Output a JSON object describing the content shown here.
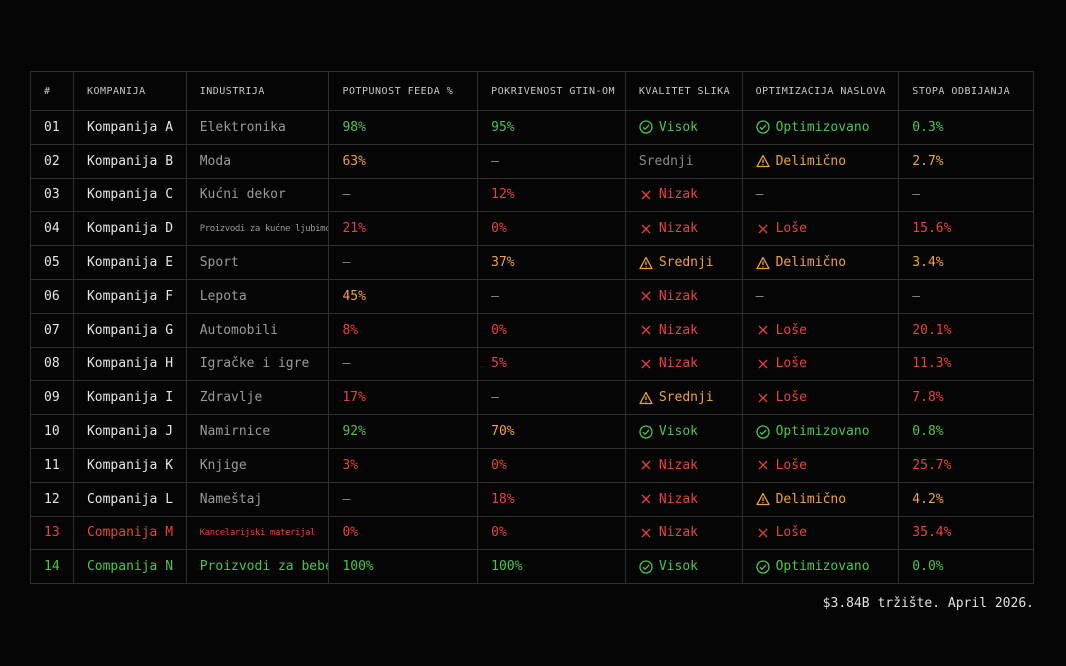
{
  "table": {
    "header": [
      "#",
      "KOMPANIJA",
      "INDUSTRIJA",
      "POTPUNOST FEEDA %",
      "POKRIVENOST GTIN-OM",
      "KVALITET SLIKA",
      "OPTIMIZACIJA NASLOVA",
      "STOPA ODBIJANJA"
    ],
    "rows": [
      [
        "01",
        "Kompanija A",
        "Elektronika",
        "98%",
        "95%",
        "Visok",
        "Optimizovano",
        "0.3%"
      ],
      [
        "02",
        "Kompanija B",
        "Moda",
        "63%",
        "–",
        "Srednji",
        "Delimično",
        "2.7%"
      ],
      [
        "03",
        "Kompanija C",
        "Kućni dekor",
        "–",
        "12%",
        "Nizak",
        "–",
        "–"
      ],
      [
        "04",
        "Kompanija D",
        "Proizvodi za kućne ljubimce",
        "21%",
        "0%",
        "Nizak",
        "Loše",
        "15.6%"
      ],
      [
        "05",
        "Kompanija E",
        "Sport",
        "–",
        "37%",
        "Srednji",
        "Delimično",
        "3.4%"
      ],
      [
        "06",
        "Kompanija F",
        "Lepota",
        "45%",
        "–",
        "Nizak",
        "–",
        "–"
      ],
      [
        "07",
        "Kompanija G",
        "Automobili",
        "8%",
        "0%",
        "Nizak",
        "Loše",
        "20.1%"
      ],
      [
        "08",
        "Kompanija H",
        "Igračke i igre",
        "–",
        "5%",
        "Nizak",
        "Loše",
        "11.3%"
      ],
      [
        "09",
        "Kompanija I",
        "Zdravlje",
        "17%",
        "–",
        "Srednji",
        "Loše",
        "7.8%"
      ],
      [
        "10",
        "Kompanija J",
        "Namirnice",
        "92%",
        "70%",
        "Visok",
        "Optimizovano",
        "0.8%"
      ],
      [
        "11",
        "Kompanija K",
        "Knjige",
        "3%",
        "0%",
        "Nizak",
        "Loše",
        "25.7%"
      ],
      [
        "12",
        "Companija L",
        "Nameštaj",
        "–",
        "18%",
        "Nizak",
        "Delimično",
        "4.2%"
      ],
      [
        "13",
        "Companija M",
        "Kancelarijski materijal",
        "0%",
        "0%",
        "Nizak",
        "Loše",
        "35.4%"
      ],
      [
        "14",
        "Companija N",
        "Proizvodi za bebe",
        "100%",
        "100%",
        "Visok",
        "Optimizovano",
        "0.0%"
      ]
    ]
  },
  "footer": "$3.84B tržište. April 2026."
}
